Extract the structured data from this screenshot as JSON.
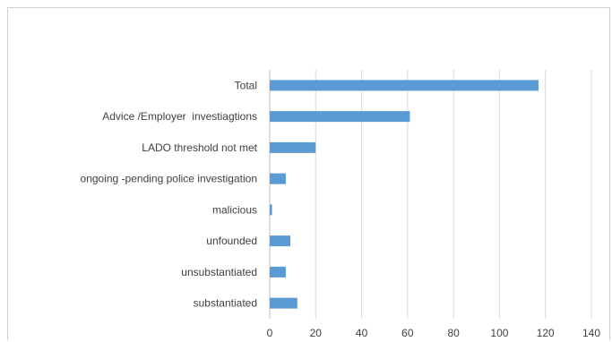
{
  "chart_data": {
    "type": "bar",
    "orientation": "horizontal",
    "categories": [
      "Total",
      "Advice /Employer  investiagtions",
      "LADO threshold not met",
      "ongoing -pending police investigation",
      "malicious",
      "unfounded",
      "unsubstantiated",
      "substantiated"
    ],
    "values": [
      117,
      61,
      20,
      7,
      1,
      9,
      7,
      12
    ],
    "title": "",
    "xlabel": "",
    "ylabel": "",
    "xlim": [
      0,
      140
    ],
    "xticks": [
      "0",
      "20",
      "40",
      "60",
      "80",
      "100",
      "120",
      "140"
    ],
    "grid": "vertical",
    "legend": "none",
    "colors": {
      "bar": "#5b9bd5",
      "grid": "#d9d9d9",
      "text": "#404040"
    }
  }
}
